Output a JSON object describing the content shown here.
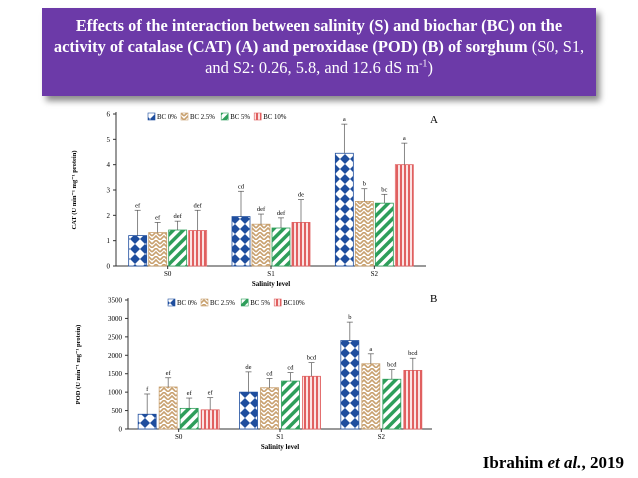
{
  "title": {
    "bold_text": "Effects of the interaction between salinity (S) and biochar (BC) on the activity of catalase (CAT) (A) and peroxidase (POD) (B) of sorghum",
    "normal_text": " (S0, S1, and S2: 0.26, 5.8, and 12.6 dS m",
    "superscript": "-1",
    "closing": ")"
  },
  "citation": {
    "author": "Ibrahim ",
    "etal": "et al.",
    "year": ", 2019"
  },
  "colors": {
    "title_bg": "#6c3aa8",
    "bc0": "#1f4e9e",
    "bc25": "#c8a06e",
    "bc5": "#2e9e5a",
    "bc10": "#e06060"
  },
  "chart_data": [
    {
      "type": "bar",
      "panel_label": "A",
      "categories": [
        "S0",
        "S1",
        "S2"
      ],
      "xlabel": "Salinity level",
      "ylabel": "CAT (U min⁻¹ mg⁻¹ protein)",
      "ylim": [
        0,
        6
      ],
      "yticks": [
        "0",
        "1",
        "2",
        "3",
        "4",
        "5",
        "6"
      ],
      "legend": [
        "BC 0%",
        "BC 2.5%",
        "BC 5%",
        "BC 10%"
      ],
      "series": [
        {
          "name": "BC 0%",
          "values": [
            1.2,
            1.95,
            4.45
          ],
          "errors": [
            1.0,
            1.0,
            1.15
          ],
          "letters": [
            "ef",
            "cd",
            "a"
          ]
        },
        {
          "name": "BC 2.5%",
          "values": [
            1.32,
            1.65,
            2.55
          ],
          "errors": [
            0.4,
            0.4,
            0.5
          ],
          "letters": [
            "ef",
            "def",
            "b"
          ]
        },
        {
          "name": "BC 5%",
          "values": [
            1.42,
            1.5,
            2.48
          ],
          "errors": [
            0.35,
            0.4,
            0.35
          ],
          "letters": [
            "def",
            "def",
            "bc"
          ]
        },
        {
          "name": "BC 10%",
          "values": [
            1.4,
            1.72,
            4.0
          ],
          "errors": [
            0.8,
            0.9,
            0.85
          ],
          "letters": [
            "def",
            "de",
            "a"
          ]
        }
      ]
    },
    {
      "type": "bar",
      "panel_label": "B",
      "categories": [
        "S0",
        "S1",
        "S2"
      ],
      "xlabel": "Salinity level",
      "ylabel": "POD (U min⁻¹ mg⁻¹ protein)",
      "ylim": [
        0,
        3500
      ],
      "yticks": [
        "0",
        "500",
        "1000",
        "1500",
        "2000",
        "2500",
        "3000",
        "3500"
      ],
      "legend": [
        "BC 0%",
        "BC 2.5%",
        "BC 5%",
        "BC10%"
      ],
      "series": [
        {
          "name": "BC 0%",
          "values": [
            400,
            1000,
            2400
          ],
          "errors": [
            550,
            550,
            500
          ],
          "letters": [
            "f",
            "de",
            "b"
          ]
        },
        {
          "name": "BC 2.5%",
          "values": [
            1140,
            1120,
            1770
          ],
          "errors": [
            250,
            250,
            270
          ],
          "letters": [
            "ef",
            "cd",
            "a"
          ]
        },
        {
          "name": "BC 5%",
          "values": [
            560,
            1300,
            1350
          ],
          "errors": [
            280,
            230,
            260
          ],
          "letters": [
            "ef",
            "cd",
            "bcd"
          ]
        },
        {
          "name": "BC10%",
          "values": [
            520,
            1430,
            1590
          ],
          "errors": [
            330,
            370,
            330
          ],
          "letters": [
            "ef",
            "bcd",
            "bcd"
          ]
        }
      ]
    }
  ]
}
